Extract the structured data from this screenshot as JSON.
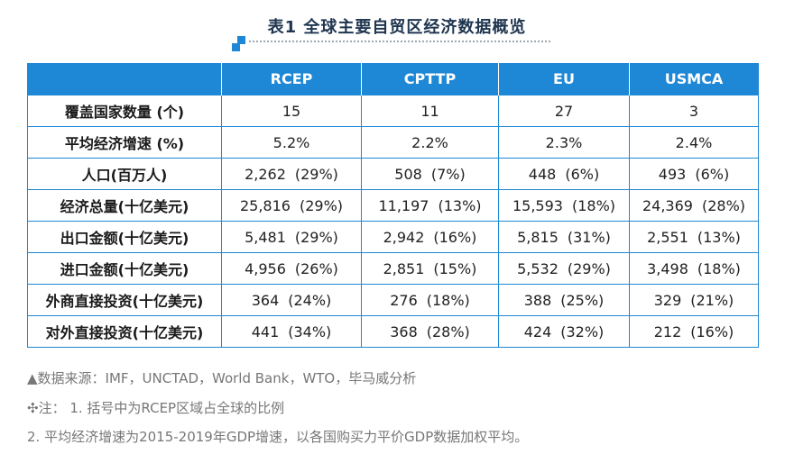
{
  "title": "表1 全球主要自贸区经济数据概览",
  "table": {
    "headers": [
      "",
      "RCEP",
      "CPTTP",
      "EU",
      "USMCA"
    ],
    "rows": [
      {
        "label": "覆盖国家数量 (个)",
        "cells": [
          [
            "15",
            ""
          ],
          [
            "11",
            ""
          ],
          [
            "27",
            ""
          ],
          [
            "3",
            ""
          ]
        ]
      },
      {
        "label": "平均经济增速 (%)",
        "cells": [
          [
            "5.2%",
            ""
          ],
          [
            "2.2%",
            ""
          ],
          [
            "2.3%",
            ""
          ],
          [
            "2.4%",
            ""
          ]
        ]
      },
      {
        "label": "人口(百万人)",
        "cells": [
          [
            "2,262",
            "(29%)"
          ],
          [
            "508",
            "(7%)"
          ],
          [
            "448",
            "(6%)"
          ],
          [
            "493",
            "(6%)"
          ]
        ]
      },
      {
        "label": "经济总量(十亿美元)",
        "cells": [
          [
            "25,816",
            "(29%)"
          ],
          [
            "11,197",
            "(13%)"
          ],
          [
            "15,593",
            "(18%)"
          ],
          [
            "24,369",
            "(28%)"
          ]
        ]
      },
      {
        "label": "出口金额(十亿美元)",
        "cells": [
          [
            "5,481",
            "(29%)"
          ],
          [
            "2,942",
            "(16%)"
          ],
          [
            "5,815",
            "(31%)"
          ],
          [
            "2,551",
            "(13%)"
          ]
        ]
      },
      {
        "label": "进口金额(十亿美元)",
        "cells": [
          [
            "4,956",
            "(26%)"
          ],
          [
            "2,851",
            "(15%)"
          ],
          [
            "5,532",
            "(29%)"
          ],
          [
            "3,498",
            "(18%)"
          ]
        ]
      },
      {
        "label": "外商直接投资(十亿美元)",
        "cells": [
          [
            "364",
            "(24%)"
          ],
          [
            "276",
            "(18%)"
          ],
          [
            "388",
            "(25%)"
          ],
          [
            "329",
            "(21%)"
          ]
        ]
      },
      {
        "label": "对外直接投资(十亿美元)",
        "cells": [
          [
            "441",
            "(34%)"
          ],
          [
            "368",
            "(28%)"
          ],
          [
            "424",
            "(32%)"
          ],
          [
            "212",
            "(16%)"
          ]
        ]
      }
    ]
  },
  "notes": {
    "source": "▲数据来源：IMF，UNCTAD，World Bank，WTO，毕马威分析",
    "note1": "✣注： 1. 括号中为RCEP区域占全球的比例",
    "note2": "2. 平均经济增速为2015-2019年GDP增速，以各国购买力平价GDP数据加权平均。"
  },
  "colors": {
    "accent": "#1e88d6",
    "title": "#1f3550",
    "note": "#777777"
  }
}
